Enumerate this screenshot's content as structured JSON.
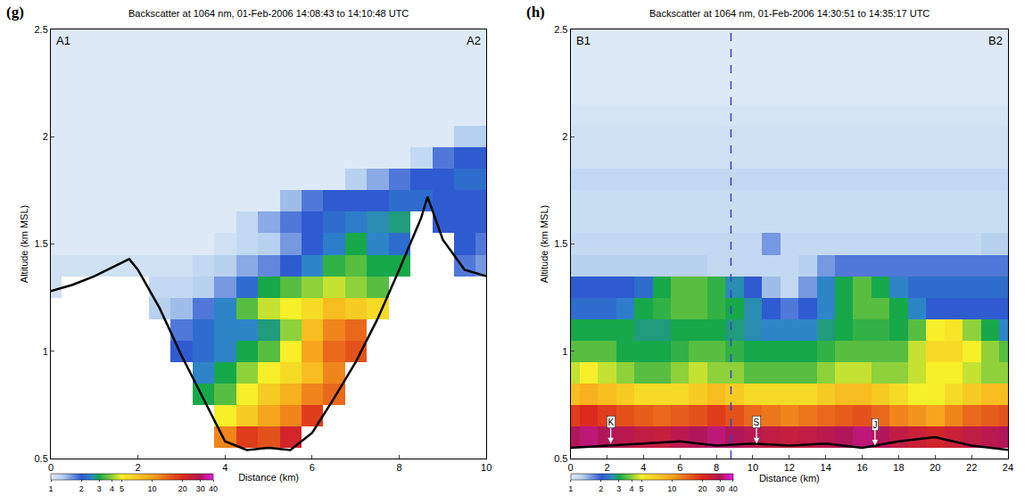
{
  "chart_data": [
    {
      "type": "heatmap",
      "panel_label": "(g)",
      "title": "Backscatter at 1064 nm, 01-Feb-2006 14:08:43 to 14:10:48 UTC",
      "x_label": "Distance (km)",
      "y_label": "Altitude (km MSL)",
      "xlim": [
        0,
        10
      ],
      "ylim": [
        0.5,
        2.5
      ],
      "xticks": [
        0,
        2,
        4,
        6,
        8,
        10
      ],
      "yticks": [
        0.5,
        1,
        1.5,
        2,
        2.5
      ],
      "corner_labels": [
        "A1",
        "A2"
      ],
      "x": [
        0,
        0.5,
        1,
        1.5,
        2,
        2.5,
        3,
        3.5,
        4,
        4.5,
        5,
        5.5,
        6,
        6.5,
        7,
        7.5,
        8,
        8.5,
        9,
        9.5,
        10
      ],
      "y": [
        0.5,
        0.6,
        0.7,
        0.8,
        0.9,
        1.0,
        1.1,
        1.2,
        1.3,
        1.4,
        1.5,
        1.6,
        1.7,
        1.8,
        1.9,
        2.0,
        2.1,
        2.2,
        2.3,
        2.4,
        2.5
      ],
      "z": [
        [
          null,
          null,
          null,
          null,
          null,
          null,
          null,
          null,
          null,
          null,
          null,
          null,
          null,
          null,
          null,
          null,
          null,
          null,
          null,
          null,
          null
        ],
        [
          null,
          null,
          null,
          null,
          null,
          null,
          null,
          null,
          12,
          18,
          16,
          22,
          null,
          null,
          null,
          null,
          null,
          null,
          null,
          null,
          null
        ],
        [
          null,
          null,
          null,
          null,
          null,
          null,
          null,
          null,
          5,
          7,
          10,
          12,
          18,
          null,
          null,
          null,
          null,
          null,
          null,
          null,
          null
        ],
        [
          null,
          null,
          null,
          null,
          null,
          null,
          null,
          3,
          3.5,
          5,
          7,
          9,
          12,
          14,
          null,
          null,
          null,
          null,
          null,
          null,
          null
        ],
        [
          null,
          null,
          null,
          null,
          null,
          null,
          null,
          2.5,
          3,
          4,
          5,
          6,
          8,
          12,
          null,
          null,
          null,
          null,
          null,
          null,
          null
        ],
        [
          null,
          null,
          null,
          null,
          null,
          null,
          2,
          2.2,
          2.5,
          3,
          3.5,
          5,
          10,
          14,
          16,
          null,
          null,
          null,
          null,
          null,
          null
        ],
        [
          null,
          null,
          null,
          null,
          null,
          null,
          1.8,
          2.2,
          2.5,
          2.5,
          2.8,
          4,
          8,
          12,
          14,
          null,
          null,
          null,
          null,
          null,
          null
        ],
        [
          null,
          null,
          null,
          null,
          null,
          1.3,
          1.4,
          1.8,
          2.5,
          3.5,
          4.5,
          5,
          6,
          8,
          7,
          6,
          null,
          null,
          null,
          null,
          null
        ],
        [
          1.1,
          null,
          null,
          null,
          null,
          1.2,
          1.2,
          1.3,
          1.6,
          2.2,
          3,
          3.5,
          4,
          4.5,
          4,
          3.5,
          null,
          null,
          null,
          null,
          null
        ],
        [
          1.1,
          1.1,
          1.1,
          1.1,
          1.1,
          1.1,
          1.1,
          1.2,
          1.3,
          1.5,
          1.7,
          2,
          2.5,
          3.2,
          3.5,
          3,
          3,
          null,
          null,
          1.8,
          1.6
        ],
        [
          1,
          1,
          1,
          1,
          1,
          1,
          1,
          1,
          1.1,
          1.2,
          1.3,
          1.6,
          2,
          2.4,
          3,
          2.5,
          2.2,
          null,
          null,
          2,
          1.8
        ],
        [
          1,
          1,
          1,
          1,
          1,
          1,
          1,
          1,
          1,
          1.2,
          1.5,
          1.8,
          2,
          2.2,
          2.4,
          2.6,
          2.8,
          null,
          2,
          2,
          2
        ],
        [
          1,
          1,
          1,
          1,
          1,
          1,
          1,
          1,
          1,
          1,
          1,
          1.4,
          1.8,
          2,
          2,
          2,
          2.2,
          2.2,
          2,
          2,
          2
        ],
        [
          1,
          1,
          1,
          1,
          1,
          1,
          1,
          1,
          1,
          1,
          1,
          1,
          1,
          1,
          1.3,
          1.5,
          1.8,
          2,
          2,
          2.2,
          2.2
        ],
        [
          1,
          1,
          1,
          1,
          1,
          1,
          1,
          1,
          1,
          1,
          1,
          1,
          1,
          1,
          1,
          1,
          1,
          1.2,
          1.8,
          2,
          2
        ],
        [
          1,
          1,
          1,
          1,
          1,
          1,
          1,
          1,
          1,
          1,
          1,
          1,
          1,
          1,
          1,
          1,
          1,
          1,
          1,
          1.3,
          1.3
        ],
        [
          1,
          1,
          1,
          1,
          1,
          1,
          1,
          1,
          1,
          1,
          1,
          1,
          1,
          1,
          1,
          1,
          1,
          1,
          1,
          1,
          1
        ],
        [
          1,
          1,
          1,
          1,
          1,
          1,
          1,
          1,
          1,
          1,
          1,
          1,
          1,
          1,
          1,
          1,
          1,
          1,
          1,
          1,
          1
        ],
        [
          1,
          1,
          1,
          1,
          1,
          1,
          1,
          1,
          1,
          1,
          1,
          1,
          1,
          1,
          1,
          1,
          1,
          1,
          1,
          1,
          1
        ],
        [
          1,
          1,
          1,
          1,
          1,
          1,
          1,
          1,
          1,
          1,
          1,
          1,
          1,
          1,
          1,
          1,
          1,
          1,
          1,
          1,
          1
        ],
        [
          1,
          1,
          1,
          1,
          1,
          1,
          1,
          1,
          1,
          1,
          1,
          1,
          1,
          1,
          1,
          1,
          1,
          1,
          1,
          1,
          1
        ]
      ],
      "terrain": {
        "x": [
          0,
          0.5,
          1,
          1.5,
          1.8,
          2,
          2.5,
          3,
          3.5,
          4,
          4.5,
          5,
          5.5,
          6,
          6.5,
          7,
          7.5,
          8,
          8.5,
          8.65,
          9,
          9.5,
          10
        ],
        "y": [
          1.28,
          1.31,
          1.35,
          1.4,
          1.43,
          1.38,
          1.2,
          0.98,
          0.78,
          0.58,
          0.54,
          0.55,
          0.54,
          0.62,
          0.78,
          0.95,
          1.15,
          1.38,
          1.62,
          1.72,
          1.52,
          1.38,
          1.35
        ]
      },
      "colorbar": {
        "range": [
          1,
          40
        ],
        "ticks": [
          1,
          2,
          3,
          4,
          5,
          10,
          20,
          30,
          40
        ],
        "log": true
      }
    },
    {
      "type": "heatmap",
      "panel_label": "(h)",
      "title": "Backscatter at 1064 nm, 01-Feb-2006 14:30:51 to 14:35:17 UTC",
      "x_label": "Distance (km)",
      "y_label": "Altitude (km MSL)",
      "xlim": [
        0,
        24
      ],
      "ylim": [
        0.5,
        2.5
      ],
      "xticks": [
        0,
        2,
        4,
        6,
        8,
        10,
        12,
        14,
        16,
        18,
        20,
        22,
        24
      ],
      "yticks": [
        0.5,
        1,
        1.5,
        2,
        2.5
      ],
      "corner_labels": [
        "B1",
        "B2"
      ],
      "vline": 8.8,
      "site_markers": [
        {
          "label": "K",
          "x": 2.2,
          "y": 0.57
        },
        {
          "label": "S",
          "x": 10.2,
          "y": 0.57
        },
        {
          "label": "J",
          "x": 16.7,
          "y": 0.56
        }
      ],
      "x": [
        0,
        1,
        2,
        3,
        4,
        5,
        6,
        7,
        8,
        9,
        10,
        11,
        12,
        13,
        14,
        15,
        16,
        17,
        18,
        19,
        20,
        21,
        22,
        23,
        24
      ],
      "y": [
        0.5,
        0.6,
        0.7,
        0.8,
        0.9,
        1.0,
        1.1,
        1.2,
        1.3,
        1.4,
        1.5,
        1.6,
        1.7,
        1.8,
        1.9,
        2.0,
        2.1,
        2.2,
        2.3,
        2.4,
        2.5
      ],
      "z": [
        [
          null,
          null,
          null,
          null,
          null,
          null,
          null,
          null,
          null,
          null,
          null,
          null,
          null,
          null,
          null,
          null,
          null,
          null,
          null,
          null,
          null,
          null,
          null,
          null,
          null
        ],
        [
          30,
          32,
          30,
          28,
          26,
          25,
          28,
          30,
          32,
          30,
          28,
          26,
          25,
          26,
          28,
          30,
          32,
          30,
          26,
          24,
          22,
          24,
          26,
          28,
          30
        ],
        [
          18,
          20,
          18,
          16,
          15,
          14,
          15,
          16,
          18,
          16,
          14,
          13,
          12,
          13,
          14,
          15,
          16,
          14,
          12,
          11,
          10,
          12,
          14,
          15,
          16
        ],
        [
          8,
          9,
          8,
          7,
          6,
          6,
          6,
          7,
          8,
          7,
          6,
          6,
          6,
          6,
          7,
          8,
          8,
          7,
          6,
          5,
          5,
          6,
          7,
          8,
          8
        ],
        [
          4.5,
          5,
          4.5,
          4,
          3.5,
          3.5,
          4,
          4.5,
          4,
          4,
          3.5,
          3.5,
          3.5,
          3.5,
          4,
          4.5,
          4.5,
          4,
          4,
          4.5,
          5,
          5,
          4.5,
          4,
          4
        ],
        [
          3.5,
          3.5,
          3.5,
          3,
          3,
          3,
          3.2,
          3.5,
          3.5,
          3.2,
          3,
          3,
          3,
          3,
          3.2,
          3.5,
          3.5,
          3.5,
          3.5,
          4.5,
          6,
          6,
          5,
          4,
          3.5
        ],
        [
          3,
          3,
          3,
          3,
          2.8,
          2.8,
          3,
          3,
          3,
          2.8,
          2.6,
          2.5,
          2.5,
          2.5,
          2.8,
          3,
          3.2,
          3.2,
          3,
          3.5,
          5,
          5.5,
          4,
          3,
          2.5
        ],
        [
          2.2,
          2.2,
          2.2,
          2.4,
          3,
          3.2,
          3.5,
          3.5,
          3.2,
          3,
          2.6,
          2,
          1.8,
          2,
          2.5,
          3,
          3.5,
          3.5,
          3,
          2.5,
          2,
          2,
          2,
          2,
          2
        ],
        [
          2,
          2,
          2,
          2,
          2.2,
          3,
          3.5,
          3.5,
          3.2,
          2.6,
          2,
          1.4,
          1.2,
          1.6,
          2.5,
          3,
          3.5,
          3,
          2.5,
          2.2,
          2.2,
          2.2,
          2.2,
          2.2,
          2.2
        ],
        [
          1.3,
          1.3,
          1.3,
          1.3,
          1.3,
          1.3,
          1.3,
          1.3,
          1.2,
          1.2,
          1.2,
          1.2,
          1.2,
          1.3,
          1.6,
          1.8,
          1.8,
          1.8,
          1.8,
          1.8,
          1.8,
          1.8,
          1.8,
          1.8,
          1.8
        ],
        [
          1.2,
          1.2,
          1.2,
          1.2,
          1.2,
          1.2,
          1.2,
          1.2,
          1.2,
          1.2,
          1.2,
          1.6,
          1.2,
          1.2,
          1.2,
          1.2,
          1.2,
          1.2,
          1.2,
          1.2,
          1.2,
          1.2,
          1.2,
          1.3,
          1.3
        ],
        [
          1.15,
          1.15,
          1.15,
          1.15,
          1.15,
          1.15,
          1.15,
          1.15,
          1.15,
          1.15,
          1.15,
          1.15,
          1.15,
          1.15,
          1.15,
          1.15,
          1.15,
          1.15,
          1.15,
          1.15,
          1.15,
          1.15,
          1.15,
          1.15,
          1.15
        ],
        [
          1.15,
          1.15,
          1.15,
          1.15,
          1.15,
          1.15,
          1.15,
          1.15,
          1.15,
          1.15,
          1.15,
          1.15,
          1.15,
          1.15,
          1.15,
          1.15,
          1.15,
          1.15,
          1.15,
          1.15,
          1.15,
          1.15,
          1.15,
          1.15,
          1.15
        ],
        [
          1.2,
          1.2,
          1.2,
          1.2,
          1.2,
          1.2,
          1.2,
          1.2,
          1.2,
          1.2,
          1.2,
          1.2,
          1.2,
          1.2,
          1.2,
          1.2,
          1.2,
          1.2,
          1.2,
          1.2,
          1.2,
          1.2,
          1.2,
          1.2,
          1.2
        ],
        [
          1.1,
          1.1,
          1.1,
          1.1,
          1.1,
          1.1,
          1.1,
          1.1,
          1.1,
          1.1,
          1.1,
          1.1,
          1.1,
          1.1,
          1.1,
          1.1,
          1.1,
          1.1,
          1.1,
          1.1,
          1.1,
          1.1,
          1.1,
          1.1,
          1.1
        ],
        [
          1.1,
          1.1,
          1.1,
          1.1,
          1.1,
          1.1,
          1.1,
          1.1,
          1.1,
          1.1,
          1.1,
          1.1,
          1.1,
          1.1,
          1.1,
          1.1,
          1.1,
          1.1,
          1.1,
          1.1,
          1.1,
          1.1,
          1.1,
          1.1,
          1.1
        ],
        [
          1.05,
          1.05,
          1.05,
          1.05,
          1.05,
          1.05,
          1.05,
          1.05,
          1.05,
          1.05,
          1.05,
          1.05,
          1.05,
          1.05,
          1.05,
          1.05,
          1.05,
          1.05,
          1.05,
          1.05,
          1.05,
          1.05,
          1.05,
          1.05,
          1.05
        ],
        [
          1,
          1,
          1,
          1,
          1,
          1,
          1,
          1,
          1,
          1,
          1,
          1,
          1,
          1,
          1,
          1,
          1,
          1,
          1,
          1,
          1,
          1,
          1,
          1,
          1
        ],
        [
          1,
          1,
          1,
          1,
          1,
          1,
          1,
          1,
          1,
          1,
          1,
          1,
          1,
          1,
          1,
          1,
          1,
          1,
          1,
          1,
          1,
          1,
          1,
          1,
          1
        ],
        [
          1,
          1,
          1,
          1,
          1,
          1,
          1,
          1,
          1,
          1,
          1,
          1,
          1,
          1,
          1,
          1,
          1,
          1,
          1,
          1,
          1,
          1,
          1,
          1,
          1
        ],
        [
          1,
          1,
          1,
          1,
          1,
          1,
          1,
          1,
          1,
          1,
          1,
          1,
          1,
          1,
          1,
          1,
          1,
          1,
          1,
          1,
          1,
          1,
          1,
          1,
          1
        ]
      ],
      "terrain": {
        "x": [
          0,
          2,
          4,
          6,
          8,
          10,
          12,
          14,
          16,
          18,
          20,
          22,
          24
        ],
        "y": [
          0.55,
          0.56,
          0.57,
          0.58,
          0.56,
          0.57,
          0.56,
          0.57,
          0.55,
          0.58,
          0.6,
          0.56,
          0.54
        ]
      },
      "colorbar": {
        "range": [
          1,
          40
        ],
        "ticks": [
          1,
          2,
          3,
          4,
          5,
          10,
          20,
          30,
          40
        ],
        "log": true
      }
    }
  ]
}
